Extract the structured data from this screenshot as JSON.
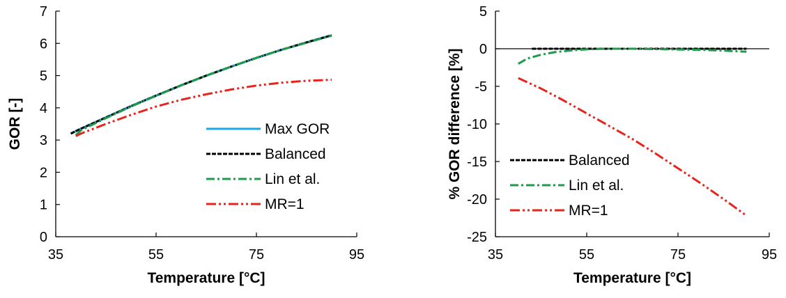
{
  "chart_data": [
    {
      "type": "line",
      "title": "",
      "xlabel": "Temperature [°C]",
      "ylabel": "GOR [-]",
      "xlim": [
        35,
        95
      ],
      "ylim": [
        0,
        7
      ],
      "xticks": [
        35,
        55,
        75,
        95
      ],
      "yticks": [
        0,
        1,
        2,
        3,
        4,
        5,
        6,
        7
      ],
      "grid": false,
      "legend": "bottom-right",
      "series": [
        {
          "name": "Max GOR",
          "color": "#1ca9e1",
          "style": "solid",
          "x": [
            38,
            40,
            45,
            50,
            55,
            60,
            65,
            70,
            75,
            80,
            85,
            90
          ],
          "y": [
            3.2,
            3.35,
            3.7,
            4.05,
            4.38,
            4.7,
            5.0,
            5.28,
            5.55,
            5.8,
            6.03,
            6.25
          ]
        },
        {
          "name": "Balanced",
          "color": "#000000",
          "style": "dashed",
          "x": [
            38,
            40,
            45,
            50,
            55,
            60,
            65,
            70,
            75,
            80,
            85,
            90
          ],
          "y": [
            3.2,
            3.35,
            3.7,
            4.05,
            4.38,
            4.7,
            5.0,
            5.28,
            5.55,
            5.8,
            6.03,
            6.25
          ]
        },
        {
          "name": "Lin et al.",
          "color": "#1f9a4a",
          "style": "dashdot",
          "x": [
            39,
            40,
            45,
            50,
            55,
            60,
            65,
            70,
            75,
            80,
            85,
            90
          ],
          "y": [
            3.15,
            3.3,
            3.68,
            4.04,
            4.37,
            4.7,
            5.0,
            5.28,
            5.55,
            5.8,
            6.02,
            6.24
          ]
        },
        {
          "name": "MR=1",
          "color": "#e8231c",
          "style": "dashdotdot",
          "x": [
            39,
            40,
            45,
            50,
            55,
            60,
            65,
            70,
            75,
            80,
            85,
            90
          ],
          "y": [
            3.12,
            3.2,
            3.5,
            3.78,
            4.04,
            4.25,
            4.42,
            4.57,
            4.69,
            4.78,
            4.84,
            4.87
          ]
        }
      ]
    },
    {
      "type": "line",
      "title": "",
      "xlabel": "Temperature [°C]",
      "ylabel": "% GOR difference [%]",
      "xlim": [
        35,
        95
      ],
      "ylim": [
        -25,
        5
      ],
      "xticks": [
        35,
        55,
        75,
        95
      ],
      "yticks": [
        5,
        0,
        -5,
        -10,
        -15,
        -20,
        -25
      ],
      "grid": false,
      "zero_line": true,
      "legend": "bottom-left",
      "series": [
        {
          "name": "Balanced",
          "color": "#000000",
          "style": "dashed",
          "x": [
            43,
            50,
            55,
            60,
            65,
            70,
            75,
            80,
            85,
            90
          ],
          "y": [
            0,
            0,
            0,
            0,
            0,
            0,
            0,
            0,
            0,
            0
          ]
        },
        {
          "name": "Lin et al.",
          "color": "#1f9a4a",
          "style": "dashdot",
          "x": [
            40,
            42,
            45,
            48,
            52,
            56,
            60,
            65,
            70,
            75,
            80,
            85,
            90
          ],
          "y": [
            -2.0,
            -1.3,
            -0.8,
            -0.45,
            -0.2,
            -0.05,
            0,
            0,
            -0.05,
            -0.1,
            -0.15,
            -0.25,
            -0.4
          ]
        },
        {
          "name": "MR=1",
          "color": "#e8231c",
          "style": "dashdotdot",
          "x": [
            40,
            45,
            50,
            55,
            60,
            65,
            70,
            75,
            80,
            85,
            90
          ],
          "y": [
            -3.9,
            -5.3,
            -6.9,
            -8.6,
            -10.3,
            -12.0,
            -13.9,
            -15.9,
            -17.9,
            -20.0,
            -22.2
          ]
        }
      ]
    }
  ]
}
